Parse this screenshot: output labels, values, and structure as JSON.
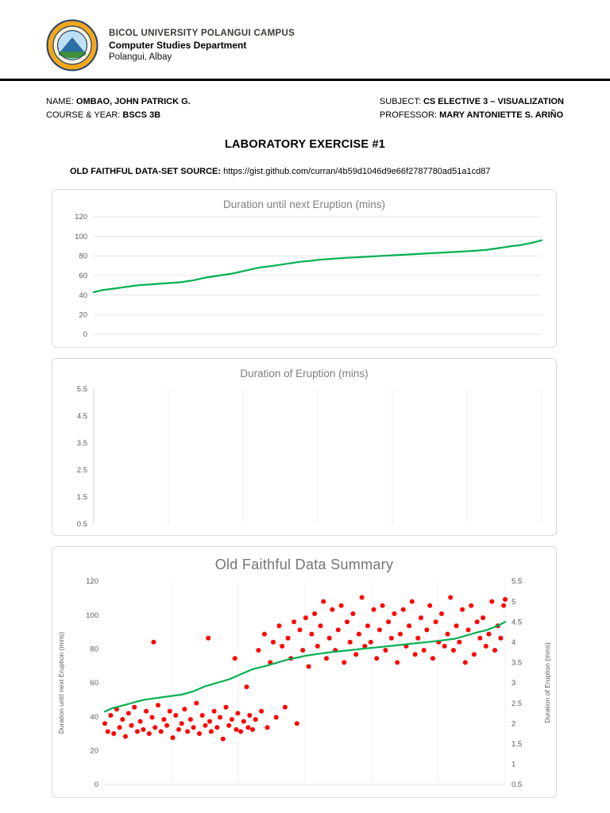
{
  "header": {
    "university": "BICOL UNIVERSITY POLANGUI CAMPUS",
    "department": "Computer Studies Department",
    "location": "Polangui, Albay"
  },
  "info": {
    "name_label": "NAME:",
    "name_value": "OMBAO, JOHN PATRICK G.",
    "course_label": "COURSE & YEAR:",
    "course_value": "BSCS 3B",
    "subject_label": "SUBJECT:",
    "subject_value": "CS ELECTIVE 3 – VISUALIZATION",
    "professor_label": "PROFESSOR:",
    "professor_value": "MARY ANTONIETTE S. ARIÑO"
  },
  "doc_title": "LABORATORY EXERCISE #1",
  "dataset_source": {
    "label": "OLD FAITHFUL DATA-SET SOURCE:",
    "url": "https://gist.github.com/curran/4b59d1046d9e66f2787780ad51a1cd87"
  },
  "colors": {
    "line_green": "#00b050",
    "scatter_red": "#ff0000",
    "grid": "#e4e4e4",
    "tick_text": "#595959",
    "chart_border": "#d9d9d9",
    "title_gray": "#7f7f7f"
  },
  "chart_data": [
    {
      "type": "line",
      "title": "Duration until next Eruption (mins)",
      "xlabel": "",
      "ylabel": "",
      "ylim": [
        0,
        120
      ],
      "yticks": [
        0,
        20,
        40,
        60,
        80,
        100,
        120
      ],
      "x_count": 272,
      "grid": "horizontal",
      "legend": "none",
      "series": [
        {
          "name": "Duration until next Eruption (mins)",
          "color": "#00b050",
          "points": [
            [
              0,
              43
            ],
            [
              5,
              45
            ],
            [
              14,
              47
            ],
            [
              22,
              49
            ],
            [
              27,
              50
            ],
            [
              35,
              51
            ],
            [
              43,
              52
            ],
            [
              52,
              53
            ],
            [
              60,
              55
            ],
            [
              68,
              58
            ],
            [
              76,
              60
            ],
            [
              84,
              62
            ],
            [
              92,
              65
            ],
            [
              100,
              68
            ],
            [
              109,
              70
            ],
            [
              117,
              72
            ],
            [
              125,
              74
            ],
            [
              131,
              75
            ],
            [
              136,
              76
            ],
            [
              144,
              77
            ],
            [
              152,
              78
            ],
            [
              163,
              79
            ],
            [
              174,
              80
            ],
            [
              185,
              81
            ],
            [
              196,
              82
            ],
            [
              207,
              83
            ],
            [
              218,
              84
            ],
            [
              228,
              85
            ],
            [
              237,
              86
            ],
            [
              245,
              88
            ],
            [
              253,
              90
            ],
            [
              258,
              91
            ],
            [
              264,
              93
            ],
            [
              269,
              95
            ],
            [
              271,
              96
            ]
          ]
        }
      ]
    },
    {
      "type": "empty",
      "title": "Duration of Eruption (mins)",
      "xlabel": "",
      "ylabel": "",
      "ylim": [
        0.5,
        5.5
      ],
      "yticks": [
        0.5,
        1.5,
        2.5,
        3.5,
        4.5,
        5.5
      ],
      "grid": "vertical",
      "vgrid_divisions": 6,
      "legend": "none",
      "series": []
    },
    {
      "type": "combo",
      "title": "Old Faithful Data Summary",
      "x_count": 272,
      "grid": "vertical",
      "vgrid_divisions": 6,
      "legend": "none",
      "left_axis": {
        "label": "Duration until next Eruption (mins)",
        "lim": [
          0,
          120
        ],
        "ticks": [
          0,
          20,
          40,
          60,
          80,
          100,
          120
        ]
      },
      "right_axis": {
        "label": "Duration of Eruption (mins)",
        "lim": [
          0.5,
          5.5
        ],
        "ticks": [
          0.5,
          1,
          1.5,
          2,
          2.5,
          3,
          3.5,
          4,
          4.5,
          5,
          5.5
        ]
      },
      "line_series": {
        "name": "Duration until next Eruption (mins)",
        "axis": "left",
        "color": "#00b050",
        "points": [
          [
            0,
            43
          ],
          [
            5,
            45
          ],
          [
            14,
            47
          ],
          [
            22,
            49
          ],
          [
            27,
            50
          ],
          [
            35,
            51
          ],
          [
            43,
            52
          ],
          [
            52,
            53
          ],
          [
            60,
            55
          ],
          [
            68,
            58
          ],
          [
            76,
            60
          ],
          [
            84,
            62
          ],
          [
            92,
            65
          ],
          [
            100,
            68
          ],
          [
            109,
            70
          ],
          [
            117,
            72
          ],
          [
            125,
            74
          ],
          [
            131,
            75
          ],
          [
            136,
            76
          ],
          [
            144,
            77
          ],
          [
            152,
            78
          ],
          [
            163,
            79
          ],
          [
            174,
            80
          ],
          [
            185,
            81
          ],
          [
            196,
            82
          ],
          [
            207,
            83
          ],
          [
            218,
            84
          ],
          [
            228,
            85
          ],
          [
            237,
            86
          ],
          [
            245,
            88
          ],
          [
            253,
            90
          ],
          [
            258,
            91
          ],
          [
            264,
            93
          ],
          [
            269,
            95
          ],
          [
            271,
            96
          ]
        ]
      },
      "scatter_series": {
        "name": "Duration of Eruption (mins)",
        "axis": "right",
        "color": "#ff0000",
        "points": [
          [
            0,
            2.0
          ],
          [
            2,
            1.8
          ],
          [
            4,
            2.2
          ],
          [
            6,
            1.75
          ],
          [
            8,
            2.35
          ],
          [
            10,
            1.9
          ],
          [
            12,
            2.1
          ],
          [
            14,
            1.68
          ],
          [
            16,
            2.25
          ],
          [
            18,
            1.95
          ],
          [
            20,
            2.4
          ],
          [
            22,
            1.8
          ],
          [
            24,
            2.05
          ],
          [
            26,
            1.85
          ],
          [
            28,
            2.3
          ],
          [
            30,
            1.75
          ],
          [
            32,
            2.15
          ],
          [
            33,
            4.0
          ],
          [
            34,
            1.9
          ],
          [
            36,
            2.45
          ],
          [
            38,
            1.8
          ],
          [
            40,
            2.1
          ],
          [
            42,
            1.95
          ],
          [
            44,
            2.3
          ],
          [
            46,
            1.65
          ],
          [
            48,
            2.2
          ],
          [
            50,
            1.85
          ],
          [
            52,
            2.0
          ],
          [
            54,
            2.35
          ],
          [
            56,
            1.8
          ],
          [
            58,
            2.1
          ],
          [
            60,
            1.9
          ],
          [
            62,
            2.5
          ],
          [
            64,
            1.75
          ],
          [
            66,
            2.2
          ],
          [
            68,
            1.95
          ],
          [
            70,
            4.1
          ],
          [
            71,
            2.05
          ],
          [
            72,
            1.8
          ],
          [
            74,
            2.3
          ],
          [
            76,
            1.9
          ],
          [
            78,
            2.15
          ],
          [
            80,
            1.62
          ],
          [
            82,
            2.4
          ],
          [
            84,
            1.95
          ],
          [
            86,
            2.1
          ],
          [
            88,
            3.6
          ],
          [
            89,
            1.85
          ],
          [
            90,
            2.25
          ],
          [
            92,
            1.8
          ],
          [
            94,
            2.05
          ],
          [
            96,
            2.9
          ],
          [
            97,
            1.9
          ],
          [
            98,
            2.2
          ],
          [
            100,
            1.85
          ],
          [
            102,
            2.1
          ],
          [
            104,
            3.8
          ],
          [
            106,
            2.3
          ],
          [
            108,
            4.2
          ],
          [
            110,
            1.9
          ],
          [
            112,
            3.5
          ],
          [
            114,
            4.0
          ],
          [
            116,
            2.15
          ],
          [
            118,
            4.4
          ],
          [
            120,
            3.9
          ],
          [
            122,
            2.4
          ],
          [
            124,
            4.1
          ],
          [
            126,
            3.6
          ],
          [
            128,
            4.5
          ],
          [
            130,
            2.0
          ],
          [
            132,
            4.3
          ],
          [
            134,
            3.8
          ],
          [
            136,
            4.6
          ],
          [
            138,
            3.4
          ],
          [
            140,
            4.2
          ],
          [
            142,
            4.7
          ],
          [
            144,
            3.9
          ],
          [
            146,
            4.4
          ],
          [
            148,
            5.0
          ],
          [
            150,
            3.6
          ],
          [
            152,
            4.1
          ],
          [
            154,
            4.8
          ],
          [
            156,
            3.8
          ],
          [
            158,
            4.3
          ],
          [
            160,
            4.9
          ],
          [
            162,
            3.5
          ],
          [
            164,
            4.5
          ],
          [
            166,
            4.0
          ],
          [
            168,
            4.7
          ],
          [
            170,
            3.7
          ],
          [
            172,
            4.2
          ],
          [
            174,
            5.1
          ],
          [
            176,
            3.9
          ],
          [
            178,
            4.4
          ],
          [
            180,
            4.0
          ],
          [
            182,
            4.8
          ],
          [
            184,
            3.6
          ],
          [
            186,
            4.3
          ],
          [
            188,
            4.9
          ],
          [
            190,
            3.8
          ],
          [
            192,
            4.5
          ],
          [
            194,
            4.1
          ],
          [
            196,
            4.7
          ],
          [
            198,
            3.5
          ],
          [
            200,
            4.2
          ],
          [
            202,
            4.8
          ],
          [
            204,
            3.9
          ],
          [
            206,
            4.4
          ],
          [
            208,
            5.0
          ],
          [
            210,
            3.7
          ],
          [
            212,
            4.1
          ],
          [
            214,
            4.6
          ],
          [
            216,
            3.8
          ],
          [
            218,
            4.3
          ],
          [
            220,
            4.9
          ],
          [
            222,
            3.6
          ],
          [
            224,
            4.5
          ],
          [
            226,
            4.0
          ],
          [
            228,
            4.7
          ],
          [
            230,
            3.9
          ],
          [
            232,
            4.2
          ],
          [
            234,
            5.1
          ],
          [
            236,
            3.8
          ],
          [
            238,
            4.4
          ],
          [
            240,
            4.0
          ],
          [
            242,
            4.8
          ],
          [
            244,
            3.5
          ],
          [
            246,
            4.3
          ],
          [
            248,
            4.9
          ],
          [
            250,
            3.7
          ],
          [
            252,
            4.5
          ],
          [
            254,
            4.1
          ],
          [
            256,
            4.6
          ],
          [
            258,
            3.9
          ],
          [
            260,
            4.2
          ],
          [
            262,
            5.0
          ],
          [
            264,
            3.8
          ],
          [
            266,
            4.4
          ],
          [
            268,
            4.1
          ],
          [
            270,
            4.9
          ],
          [
            271,
            5.05
          ]
        ]
      }
    }
  ]
}
